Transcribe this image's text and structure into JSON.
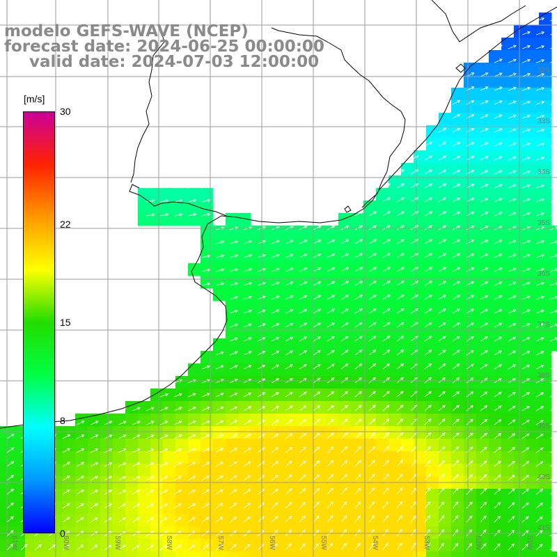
{
  "title": {
    "line1": "modelo GEFS-WAVE (NCEP)",
    "line2": "forecast date: 2024-06-25 00:00:00",
    "line3": "valid date: 2024-07-03 12:00:00"
  },
  "colorbar": {
    "unit": "[m/s]",
    "ticks": [
      {
        "value": 30,
        "label": "30"
      },
      {
        "value": 22,
        "label": "22"
      },
      {
        "value": 15,
        "label": "15"
      },
      {
        "value": 8,
        "label": "8"
      },
      {
        "value": 0,
        "label": "0"
      }
    ],
    "min": 0,
    "max": 30,
    "colors": [
      "#0000ff",
      "#0099ff",
      "#00ffff",
      "#00ff44",
      "#22dd00",
      "#ffff00",
      "#ff9900",
      "#ff2200",
      "#cc0099"
    ]
  },
  "lat_labels": [
    "32S",
    "33S",
    "34S",
    "35S",
    "36S",
    "37S",
    "38S",
    "39S",
    "40S",
    "41S"
  ],
  "lon_labels": [
    "61W",
    "60W",
    "59W",
    "58W",
    "57W",
    "56W",
    "55W",
    "54W",
    "53W",
    "52W",
    "51W"
  ],
  "colors": {
    "land": "#ffffff",
    "grid": "#9a9a9a",
    "coast": "#000000",
    "title": "#8a8a8a",
    "arrow": "#ffffff"
  }
}
